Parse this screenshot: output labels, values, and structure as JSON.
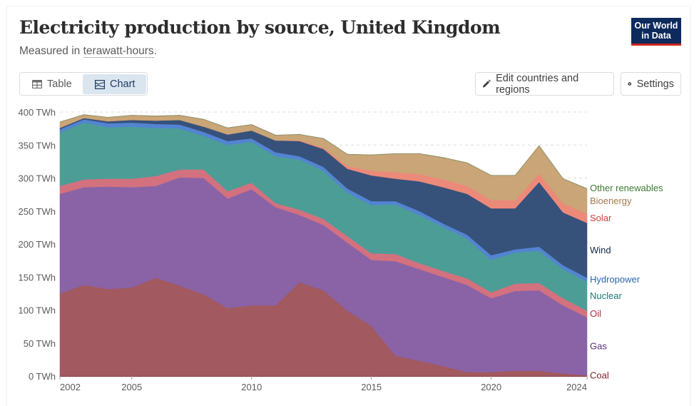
{
  "header": {
    "title": "Electricity production by source, United Kingdom",
    "subtitle_prefix": "Measured in ",
    "subtitle_term": "terawatt-hours",
    "subtitle_suffix": ".",
    "logo_line1": "Our World",
    "logo_line2": "in Data"
  },
  "controls": {
    "tabs": [
      {
        "label": "Table",
        "icon": "table-icon",
        "active": false
      },
      {
        "label": "Chart",
        "icon": "chart-icon",
        "active": true
      }
    ],
    "edit_button": {
      "label": "Edit countries and regions",
      "icon": "pencil-icon"
    },
    "settings_button": {
      "label": "Settings",
      "icon": "gear-icon"
    }
  },
  "chart_data": {
    "type": "area",
    "stacked": true,
    "title": "Electricity production by source, United Kingdom",
    "ylabel": "",
    "xlabel": "",
    "unit": "TWh",
    "ylim": [
      0,
      400
    ],
    "yticks": [
      0,
      50,
      100,
      150,
      200,
      250,
      300,
      350,
      400
    ],
    "ytick_labels": [
      "0 TWh",
      "50 TWh",
      "100 TWh",
      "150 TWh",
      "200 TWh",
      "250 TWh",
      "300 TWh",
      "350 TWh",
      "400 TWh"
    ],
    "xticks": [
      2002,
      2005,
      2010,
      2015,
      2020,
      2024
    ],
    "x": [
      2002,
      2003,
      2004,
      2005,
      2006,
      2007,
      2008,
      2009,
      2010,
      2011,
      2012,
      2013,
      2014,
      2015,
      2016,
      2017,
      2018,
      2019,
      2020,
      2021,
      2022,
      2023,
      2024
    ],
    "grid": "horizontal-dashed",
    "legend_position": "right-inline",
    "series": [
      {
        "name": "Coal",
        "color": "#a2595f",
        "label_color": "#7a1f2b",
        "values": [
          125,
          138,
          132,
          134,
          149,
          137,
          124,
          103,
          107,
          107,
          142,
          130,
          99,
          76,
          31,
          23,
          15,
          6,
          6,
          8,
          8,
          4,
          1
        ]
      },
      {
        "name": "Gas",
        "color": "#8963a6",
        "label_color": "#55307a",
        "values": [
          151,
          148,
          155,
          152,
          139,
          164,
          176,
          166,
          176,
          149,
          102,
          99,
          103,
          100,
          143,
          139,
          135,
          132,
          112,
          121,
          122,
          103,
          88
        ]
      },
      {
        "name": "Oil",
        "color": "#d3717f",
        "label_color": "#b0303f",
        "values": [
          12,
          12,
          12,
          13,
          15,
          12,
          13,
          11,
          10,
          6,
          8,
          9,
          10,
          10,
          11,
          9,
          9,
          10,
          9,
          11,
          11,
          11,
          10
        ]
      },
      {
        "name": "Nuclear",
        "color": "#4c9d96",
        "label_color": "#1d7a72",
        "values": [
          81,
          86,
          78,
          79,
          73,
          62,
          51,
          70,
          62,
          71,
          76,
          73,
          66,
          73,
          75,
          73,
          67,
          60,
          49,
          47,
          49,
          44,
          44
        ]
      },
      {
        "name": "Hydropower",
        "color": "#5384d2",
        "label_color": "#2b66b3",
        "values": [
          5,
          5,
          6,
          6,
          6,
          6,
          6,
          6,
          5,
          6,
          5,
          6,
          6,
          6,
          5,
          6,
          5,
          6,
          7,
          5,
          6,
          6,
          6
        ]
      },
      {
        "name": "Wind",
        "color": "#36517a",
        "label_color": "#13294b",
        "values": [
          2,
          2,
          3,
          4,
          5,
          7,
          8,
          10,
          12,
          18,
          23,
          27,
          30,
          39,
          34,
          45,
          55,
          62,
          71,
          62,
          98,
          80,
          83
        ]
      },
      {
        "name": "Solar",
        "color": "#ec8a7a",
        "label_color": "#c9433a",
        "values": [
          0,
          0,
          0,
          0,
          0,
          0,
          0,
          0,
          0,
          0,
          1,
          2,
          4,
          7,
          10,
          11,
          12,
          12,
          13,
          12,
          13,
          14,
          14
        ]
      },
      {
        "name": "Bioenergy",
        "color": "#c9a577",
        "label_color": "#a3774a",
        "values": [
          9,
          5,
          6,
          7,
          7,
          7,
          11,
          10,
          9,
          8,
          9,
          14,
          18,
          24,
          28,
          31,
          33,
          35,
          37,
          38,
          42,
          37,
          38
        ]
      },
      {
        "name": "Other renewables",
        "color": "#7ea068",
        "label_color": "#3d7a33",
        "values": [
          0,
          0,
          0,
          0,
          0,
          0,
          0,
          0,
          0,
          0,
          0,
          0,
          0,
          0,
          0,
          0,
          0,
          0,
          0,
          0,
          0,
          0,
          0
        ]
      }
    ]
  }
}
